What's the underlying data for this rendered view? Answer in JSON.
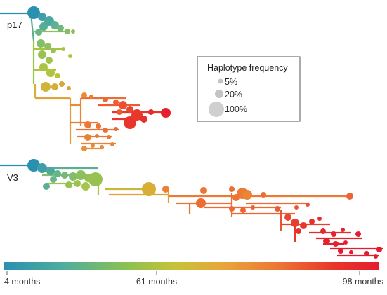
{
  "trees": [
    {
      "label": "p17"
    },
    {
      "label": "V3"
    }
  ],
  "legend": {
    "title": "Haplotype frequency",
    "items": [
      {
        "label": "5%",
        "frequency": 0.05
      },
      {
        "label": "20%",
        "frequency": 0.2
      },
      {
        "label": "100%",
        "frequency": 1.0
      }
    ]
  },
  "timescale": {
    "ticks": [
      {
        "label": "4 months",
        "months": 4
      },
      {
        "label": "61 months",
        "months": 61
      },
      {
        "label": "98 months",
        "months": 98
      }
    ],
    "colors": [
      "#2a90b0",
      "#4fae9c",
      "#8dc150",
      "#c8c238",
      "#e8a63a",
      "#ec7a34",
      "#e8362a",
      "#e41c2e"
    ]
  }
}
